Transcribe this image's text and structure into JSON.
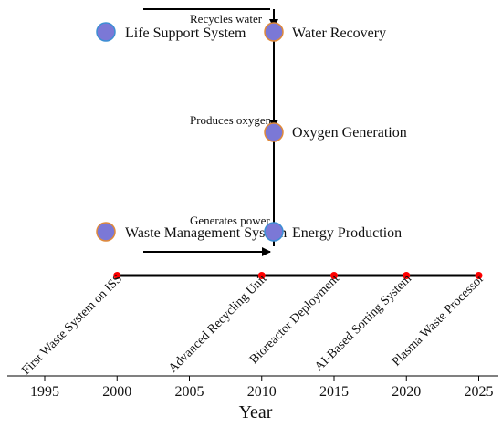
{
  "colors": {
    "node_fill": "#7b78d6",
    "node_stroke_blue": "#3d8fd4",
    "node_stroke_orange": "#e08a3a",
    "timeline_line": "#000000",
    "timeline_marker": "#ff0000",
    "arrow": "#000000",
    "text": "#111111"
  },
  "diagram": {
    "nodes": [
      {
        "id": "life-support",
        "label": "Life Support System",
        "stroke": "blue"
      },
      {
        "id": "water-recovery",
        "label": "Water Recovery",
        "stroke": "orange"
      },
      {
        "id": "oxygen-generation",
        "label": "Oxygen Generation",
        "stroke": "orange"
      },
      {
        "id": "waste-management",
        "label": "Waste Management System",
        "stroke": "orange"
      },
      {
        "id": "energy-production",
        "label": "Energy Production",
        "stroke": "blue"
      }
    ],
    "edges": [
      {
        "from": "life-support",
        "to": "water-recovery",
        "label": "Recycles water"
      },
      {
        "from": "water-recovery",
        "to": "oxygen-generation",
        "label": "Produces oxygen"
      },
      {
        "from": "waste-management",
        "to": "energy-production",
        "label": "Generates power"
      }
    ]
  },
  "chart_data": {
    "type": "scatter",
    "xlabel": "Year",
    "xlim": [
      1992,
      2027
    ],
    "xticks": [
      1995,
      2000,
      2005,
      2010,
      2015,
      2020,
      2025
    ],
    "events": [
      {
        "year": 2000,
        "label": "First Waste System on ISS"
      },
      {
        "year": 2010,
        "label": "Advanced Recycling Unit"
      },
      {
        "year": 2015,
        "label": "Bioreactor Deployment"
      },
      {
        "year": 2020,
        "label": "AI-Based Sorting System"
      },
      {
        "year": 2025,
        "label": "Plasma Waste Processor"
      }
    ]
  }
}
